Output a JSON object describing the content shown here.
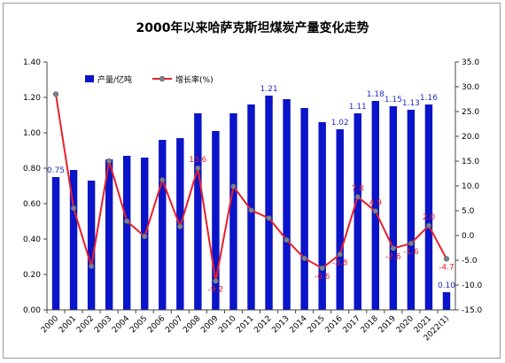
{
  "chart_data": {
    "title": "2000年以来哈萨克斯坦煤炭产量变化走势",
    "type": "bar+line",
    "categories": [
      "2000",
      "2001",
      "2002",
      "2003",
      "2004",
      "2005",
      "2006",
      "2007",
      "2008",
      "2009",
      "2010",
      "2011",
      "2012",
      "2013",
      "2014",
      "2015",
      "2016",
      "2017",
      "2018",
      "2019",
      "2020",
      "2021",
      "2022(1)"
    ],
    "series": [
      {
        "name": "产量/亿吨",
        "type": "bar",
        "axis": "left",
        "color": "#0a14c8",
        "values": [
          0.75,
          0.79,
          0.73,
          0.85,
          0.87,
          0.86,
          0.96,
          0.97,
          1.11,
          1.01,
          1.11,
          1.16,
          1.21,
          1.19,
          1.14,
          1.06,
          1.02,
          1.11,
          1.18,
          1.15,
          1.13,
          1.16,
          0.1
        ]
      },
      {
        "name": "增长率(%)",
        "type": "line",
        "axis": "right",
        "color": "#e8202a",
        "values": [
          28.5,
          5.5,
          -6.2,
          15.0,
          2.9,
          -0.2,
          11.2,
          1.8,
          13.6,
          -9.2,
          9.9,
          5.1,
          3.5,
          -0.9,
          -4.6,
          -6.6,
          -3.8,
          7.8,
          4.9,
          -2.6,
          -1.6,
          2.0,
          -4.7
        ]
      }
    ],
    "bar_labels": [
      {
        "index": 0,
        "text": "0.75"
      },
      {
        "index": 12,
        "text": "1.21"
      },
      {
        "index": 16,
        "text": "1.02"
      },
      {
        "index": 17,
        "text": "1.11"
      },
      {
        "index": 18,
        "text": "1.18"
      },
      {
        "index": 19,
        "text": "1.15"
      },
      {
        "index": 20,
        "text": "1.13"
      },
      {
        "index": 21,
        "text": "1.16"
      },
      {
        "index": 22,
        "text": "0.10"
      }
    ],
    "line_labels": [
      {
        "index": 8,
        "text": "13.6"
      },
      {
        "index": 9,
        "text": "-9.2"
      },
      {
        "index": 15,
        "text": "-6.6"
      },
      {
        "index": 16,
        "text": "-3.8"
      },
      {
        "index": 17,
        "text": "7.8"
      },
      {
        "index": 18,
        "text": "4.9"
      },
      {
        "index": 19,
        "text": "-2.6"
      },
      {
        "index": 20,
        "text": "-1.6"
      },
      {
        "index": 21,
        "text": "2.0"
      },
      {
        "index": 22,
        "text": "-4.7"
      }
    ],
    "left_axis": {
      "min": 0,
      "max": 1.4,
      "step": 0.2,
      "labels": [
        "0.00",
        "0.20",
        "0.40",
        "0.60",
        "0.80",
        "1.00",
        "1.20",
        "1.40"
      ]
    },
    "right_axis": {
      "min": -15,
      "max": 35,
      "step": 5,
      "labels": [
        "-15.0",
        "-10.0",
        "-5.0",
        "0.0",
        "5.0",
        "10.0",
        "15.0",
        "20.0",
        "25.0",
        "30.0",
        "35.0"
      ]
    },
    "legend_position": "top-left",
    "grid": false
  }
}
